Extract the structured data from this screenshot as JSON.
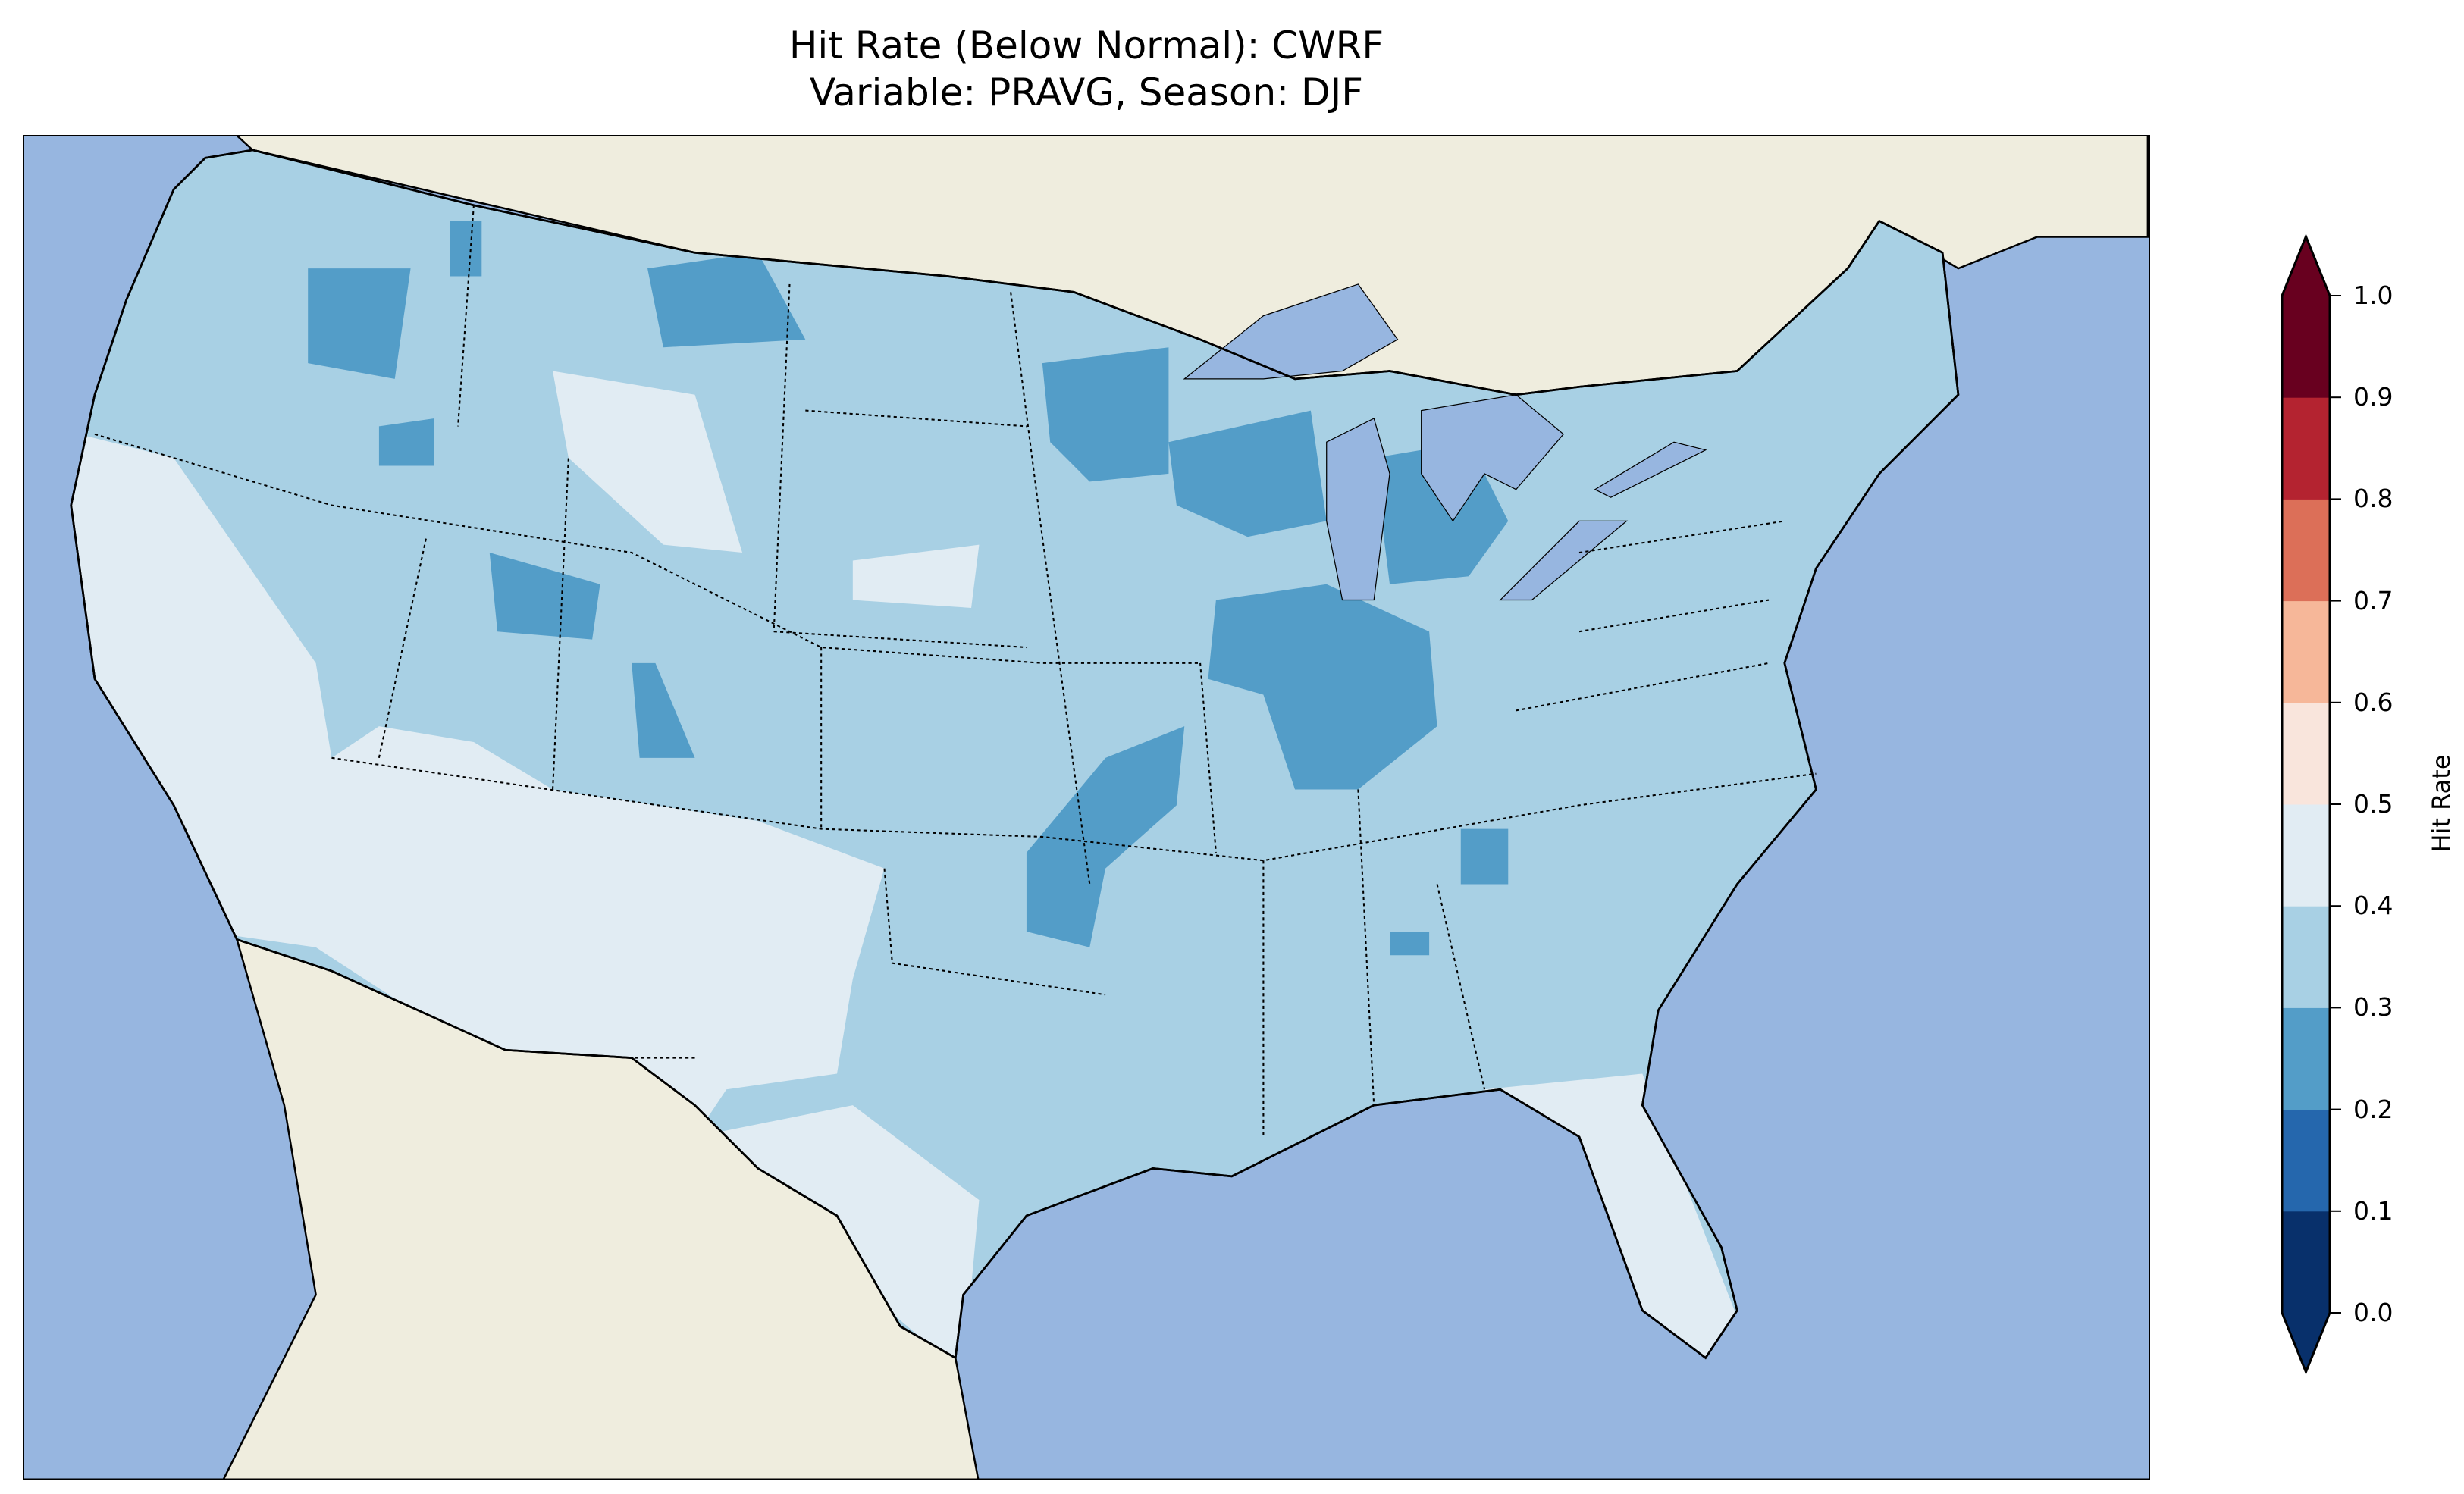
{
  "title": {
    "line1": "Hit Rate (Below Normal): CWRF",
    "line2": "Variable: PRAVG, Season: DJF"
  },
  "colorbar": {
    "label": "Hit Rate",
    "ticks": [
      "0.0",
      "0.1",
      "0.2",
      "0.3",
      "0.4",
      "0.5",
      "0.6",
      "0.7",
      "0.8",
      "0.9",
      "1.0"
    ],
    "colors": [
      "#08306b",
      "#2567ad",
      "#539dc8",
      "#a8d0e4",
      "#e1ecf3",
      "#f9e5dc",
      "#f6b799",
      "#dc6f58",
      "#b42330",
      "#68001f"
    ],
    "extend": "both"
  },
  "map_colors": {
    "ocean": "#97b6e0",
    "land": "#efedde",
    "lakes": "#97b6e0"
  }
}
